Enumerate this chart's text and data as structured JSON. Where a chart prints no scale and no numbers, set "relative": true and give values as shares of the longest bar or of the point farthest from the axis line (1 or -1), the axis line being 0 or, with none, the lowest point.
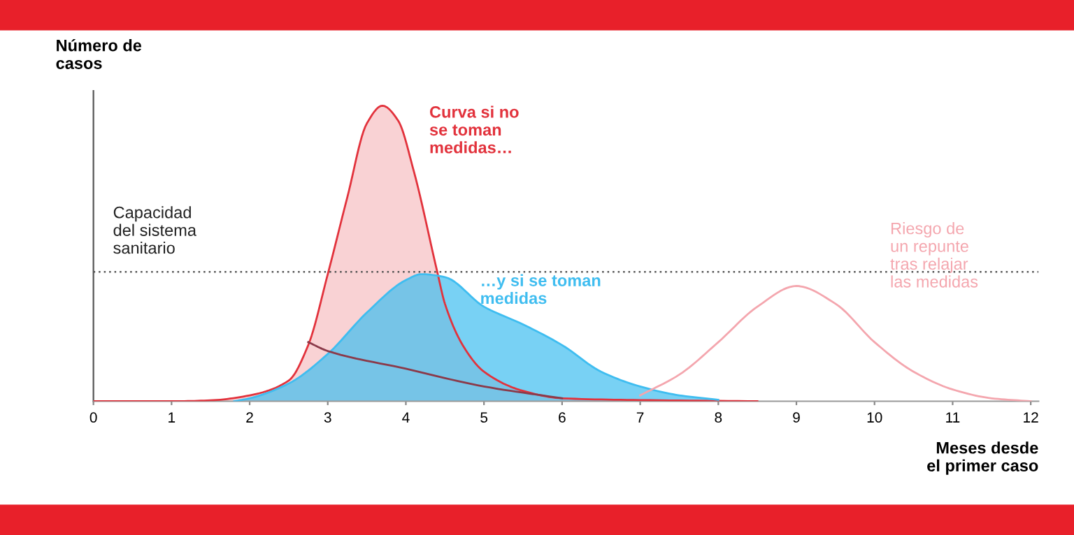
{
  "chart_data": {
    "type": "area",
    "relative": true,
    "ylabel": "Número de\ncasos",
    "xlabel": "Meses desde\nel primer caso",
    "xlim": [
      0,
      12.1
    ],
    "xticks": [
      0,
      1,
      2,
      3,
      4,
      5,
      6,
      7,
      8,
      9,
      10,
      11,
      12
    ],
    "grid": false,
    "legend": false,
    "ref_lines": [
      {
        "axis": "y",
        "value": 0.438,
        "label": "Capacidad\ndel sistema\nsanitario",
        "color": "#555555",
        "line_style": "dotted"
      }
    ],
    "series": [
      {
        "name": "Curva si no\nse toman\nmedidas…",
        "color": "#e2323c",
        "x": [
          0,
          1,
          1.5,
          2,
          2.5,
          2.75,
          3,
          3.25,
          3.5,
          3.7,
          3.9,
          4.1,
          4.4,
          4.5,
          4.75,
          5,
          5.5,
          6,
          7,
          8.5
        ],
        "values": [
          0,
          0,
          0.003,
          0.02,
          0.07,
          0.19,
          0.43,
          0.69,
          0.94,
          1.0,
          0.95,
          0.78,
          0.44,
          0.33,
          0.18,
          0.1,
          0.035,
          0.01,
          0.004,
          0
        ]
      },
      {
        "name": "…y si se toman\nmedidas",
        "color": "#3fbdf0",
        "x": [
          1.8,
          2,
          2.5,
          3,
          3.5,
          4,
          4.2,
          4.5,
          5,
          5.5,
          6,
          6.5,
          7,
          7.5,
          8
        ],
        "values": [
          0,
          0.01,
          0.06,
          0.16,
          0.3,
          0.41,
          0.43,
          0.42,
          0.32,
          0.26,
          0.19,
          0.1,
          0.05,
          0.02,
          0.005
        ]
      },
      {
        "type": "line",
        "color": "#8b3a4a",
        "x": [
          2.75,
          3,
          4,
          5,
          6
        ],
        "values": [
          0.2,
          0.17,
          0.11,
          0.05,
          0.01
        ]
      },
      {
        "name": "Riesgo de\nun repunte\ntras relajar\nlas medidas",
        "type": "line",
        "color": "#f4a6ae",
        "x": [
          7,
          7.5,
          8,
          8.5,
          9,
          9.5,
          10,
          10.5,
          11,
          11.5,
          12
        ],
        "values": [
          0.02,
          0.09,
          0.2,
          0.32,
          0.39,
          0.33,
          0.2,
          0.1,
          0.04,
          0.01,
          0
        ]
      }
    ]
  }
}
